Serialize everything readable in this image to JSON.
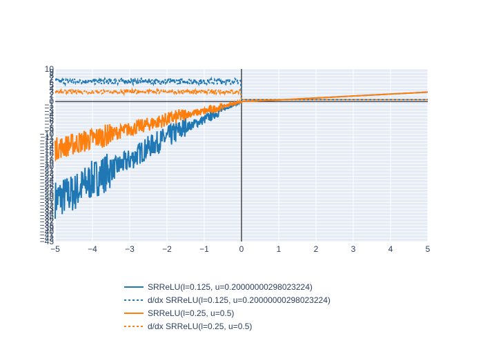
{
  "chart_data": {
    "type": "line",
    "title": "",
    "xlabel": "",
    "ylabel": "",
    "xlim": [
      -5,
      5
    ],
    "ylim": [
      -43,
      10
    ],
    "x_ticks": [
      -5,
      -4,
      -3,
      -2,
      -1,
      0,
      1,
      2,
      3,
      4,
      5
    ],
    "x_tick_labels": [
      "−5",
      "−4",
      "−3",
      "−2",
      "−1",
      "0",
      "1",
      "2",
      "3",
      "4",
      "5"
    ],
    "y_ticks": [
      10,
      9,
      8,
      7,
      6,
      5,
      4,
      3,
      2,
      1,
      0,
      -1,
      -2,
      -3,
      -4,
      -5,
      -6,
      -7,
      -8,
      -9,
      -10,
      -11,
      -12,
      -13,
      -14,
      -15,
      -16,
      -17,
      -18,
      -19,
      -20,
      -21,
      -22,
      -23,
      -24,
      -25,
      -26,
      -27,
      -28,
      -29,
      -30,
      -31,
      -32,
      -33,
      -34,
      -35,
      -36,
      -37,
      -38,
      -39,
      -40,
      -41,
      -42,
      -43
    ],
    "y_tick_labels": [
      "10",
      "9",
      "8",
      "7",
      "6",
      "5",
      "4",
      "3",
      "2",
      "1",
      "0",
      "−1",
      "−2",
      "−3",
      "−4",
      "−5",
      "−6",
      "−7",
      "−8",
      "−9",
      "−10",
      "−11",
      "−12",
      "−13",
      "−14",
      "−15",
      "−16",
      "−17",
      "−18",
      "−19",
      "−20",
      "−21",
      "−22",
      "−23",
      "−24",
      "−25",
      "−26",
      "−27",
      "−28",
      "−29",
      "−30",
      "−31",
      "−32",
      "−33",
      "−34",
      "−35",
      "−36",
      "−37",
      "−38",
      "−39",
      "−40",
      "−41",
      "−42",
      "−43"
    ],
    "grid": true,
    "legend_position": "bottom",
    "series": [
      {
        "name": "SRReLU(l=0.125, u=0.20000000298023224)",
        "color": "#1f77b4",
        "dash": "solid",
        "x": [
          -5,
          -4.5,
          -4,
          -3.5,
          -3,
          -2.5,
          -2,
          -1.5,
          -1,
          -0.5,
          0,
          1,
          2,
          3,
          4,
          5
        ],
        "y": [
          -30,
          -28,
          -24,
          -21,
          -18,
          -14,
          -11,
          -8,
          -5.5,
          -2.5,
          0,
          0.5,
          1.1,
          1.7,
          2.3,
          2.9
        ],
        "noise_range": [
          [
            -5,
            -3.5,
            6
          ],
          [
            -3.5,
            -1.5,
            3.5
          ],
          [
            -1.5,
            -0.5,
            1.5
          ],
          [
            -0.5,
            0,
            0.4
          ]
        ]
      },
      {
        "name": "d/dx SRReLU(l=0.125, u=0.20000000298023224)",
        "color": "#1f77b4",
        "dash": "dot",
        "x": [
          -5,
          -0.02,
          0,
          5
        ],
        "y": [
          6.2,
          6.2,
          0.6,
          0.6
        ],
        "noise_range": [
          [
            -5,
            0,
            0.9
          ]
        ]
      },
      {
        "name": "SRReLU(l=0.25, u=0.5)",
        "color": "#ff7f0e",
        "dash": "solid",
        "x": [
          -5,
          -4.5,
          -4,
          -3.5,
          -3,
          -2.5,
          -2,
          -1.5,
          -1,
          -0.5,
          0,
          1,
          2,
          3,
          4,
          5
        ],
        "y": [
          -14.5,
          -13,
          -11.5,
          -10,
          -8.5,
          -7,
          -5.5,
          -4,
          -3,
          -1.5,
          0,
          0.5,
          1.1,
          1.7,
          2.3,
          2.9
        ],
        "noise_range": [
          [
            -5,
            -3.5,
            3.5
          ],
          [
            -3.5,
            -1.5,
            2.2
          ],
          [
            -1.5,
            -0.5,
            1.2
          ],
          [
            -0.5,
            0,
            0.4
          ]
        ]
      },
      {
        "name": "d/dx SRReLU(l=0.25, u=0.5)",
        "color": "#ff7f0e",
        "dash": "dot",
        "x": [
          -5,
          -0.02,
          0,
          5
        ],
        "y": [
          3.0,
          3.0,
          0.6,
          0.6
        ],
        "noise_range": [
          [
            -5,
            0,
            0.6
          ]
        ]
      }
    ]
  }
}
